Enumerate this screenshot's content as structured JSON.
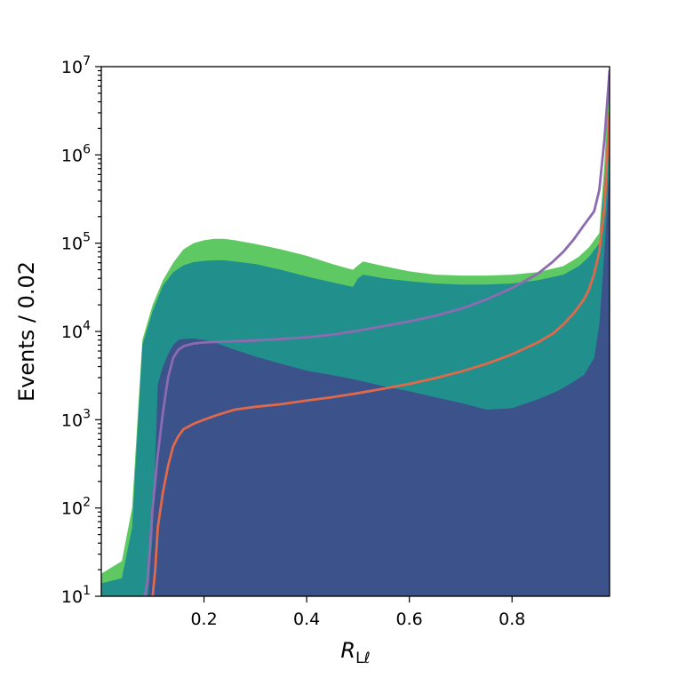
{
  "chart_data": {
    "type": "area",
    "xlabel_base": "R",
    "xlabel_sub": "Lℓ",
    "ylabel": "Events / 0.02",
    "xlim": [
      0.0,
      0.99
    ],
    "ylim": [
      10,
      10000000
    ],
    "yscale": "log",
    "grid": false,
    "x_ticks": [
      {
        "value": 0.2,
        "label": "0.2"
      },
      {
        "value": 0.4,
        "label": "0.4"
      },
      {
        "value": 0.6,
        "label": "0.6"
      },
      {
        "value": 0.8,
        "label": "0.8"
      }
    ],
    "y_ticks": [
      {
        "value": 10,
        "base": "10",
        "exp": "1"
      },
      {
        "value": 100,
        "base": "10",
        "exp": "2"
      },
      {
        "value": 1000,
        "base": "10",
        "exp": "3"
      },
      {
        "value": 10000,
        "base": "10",
        "exp": "4"
      },
      {
        "value": 100000,
        "base": "10",
        "exp": "5"
      },
      {
        "value": 1000000,
        "base": "10",
        "exp": "6"
      },
      {
        "value": 10000000,
        "base": "10",
        "exp": "7"
      }
    ],
    "stacked_areas": [
      {
        "color": "#5ec962",
        "x": [
          0.0,
          0.04,
          0.06,
          0.08,
          0.1,
          0.12,
          0.14,
          0.16,
          0.18,
          0.2,
          0.22,
          0.24,
          0.26,
          0.3,
          0.35,
          0.4,
          0.45,
          0.49,
          0.5,
          0.51,
          0.55,
          0.6,
          0.65,
          0.7,
          0.75,
          0.8,
          0.85,
          0.9,
          0.93,
          0.95,
          0.97,
          0.98,
          0.99
        ],
        "y": [
          18,
          25,
          100,
          8000,
          20000,
          38000,
          60000,
          85000,
          100000,
          108000,
          112000,
          112000,
          108000,
          98000,
          85000,
          72000,
          58000,
          50000,
          56000,
          62000,
          55000,
          48000,
          44000,
          43000,
          43000,
          44000,
          47000,
          55000,
          70000,
          90000,
          130000,
          800000,
          10000000
        ]
      },
      {
        "color": "#21908d",
        "x": [
          0.0,
          0.04,
          0.06,
          0.08,
          0.1,
          0.12,
          0.14,
          0.16,
          0.18,
          0.2,
          0.22,
          0.24,
          0.26,
          0.3,
          0.35,
          0.4,
          0.45,
          0.49,
          0.5,
          0.51,
          0.55,
          0.6,
          0.65,
          0.7,
          0.75,
          0.8,
          0.85,
          0.9,
          0.93,
          0.95,
          0.97,
          0.98,
          0.99
        ],
        "y": [
          14,
          16,
          60,
          7000,
          17000,
          33000,
          47000,
          56000,
          61000,
          63000,
          64000,
          64000,
          62000,
          58000,
          50000,
          42000,
          36000,
          32000,
          40000,
          44000,
          40000,
          37000,
          35000,
          34000,
          34000,
          35000,
          38000,
          44000,
          55000,
          70000,
          100000,
          500000,
          3000000
        ]
      },
      {
        "color": "#3b528b",
        "x": [
          0.0,
          0.08,
          0.09,
          0.1,
          0.11,
          0.12,
          0.13,
          0.14,
          0.15,
          0.16,
          0.18,
          0.2,
          0.22,
          0.25,
          0.3,
          0.35,
          0.4,
          0.45,
          0.5,
          0.55,
          0.6,
          0.65,
          0.7,
          0.73,
          0.75,
          0.77,
          0.8,
          0.85,
          0.88,
          0.9,
          0.92,
          0.94,
          0.96,
          0.97,
          0.98,
          0.99
        ],
        "y": [
          8,
          8,
          8,
          50,
          2500,
          4000,
          5500,
          7000,
          8000,
          8200,
          8300,
          8000,
          7500,
          6500,
          5200,
          4300,
          3600,
          3200,
          2800,
          2400,
          2100,
          1800,
          1550,
          1400,
          1300,
          1320,
          1350,
          1700,
          2000,
          2300,
          2700,
          3200,
          5000,
          12000,
          80000,
          800000
        ]
      }
    ],
    "lines": [
      {
        "color": "#8c6bb1",
        "x": [
          0.085,
          0.09,
          0.1,
          0.11,
          0.12,
          0.13,
          0.14,
          0.15,
          0.16,
          0.18,
          0.2,
          0.22,
          0.25,
          0.3,
          0.35,
          0.4,
          0.45,
          0.5,
          0.55,
          0.6,
          0.65,
          0.7,
          0.75,
          0.8,
          0.85,
          0.88,
          0.9,
          0.92,
          0.94,
          0.96,
          0.97,
          0.98,
          0.99
        ],
        "y": [
          10,
          15,
          100,
          400,
          1200,
          3000,
          5000,
          6200,
          6800,
          7300,
          7500,
          7600,
          7700,
          7900,
          8200,
          8600,
          9200,
          10200,
          11500,
          13000,
          15000,
          18000,
          23000,
          31000,
          45000,
          62000,
          80000,
          110000,
          160000,
          230000,
          400000,
          1500000,
          9000000
        ]
      },
      {
        "color": "#e0694a",
        "x": [
          0.1,
          0.105,
          0.11,
          0.12,
          0.13,
          0.14,
          0.15,
          0.16,
          0.18,
          0.2,
          0.22,
          0.24,
          0.26,
          0.28,
          0.3,
          0.35,
          0.4,
          0.45,
          0.5,
          0.55,
          0.6,
          0.65,
          0.7,
          0.75,
          0.8,
          0.85,
          0.88,
          0.9,
          0.92,
          0.94,
          0.95,
          0.96,
          0.97,
          0.98,
          0.99
        ],
        "y": [
          10,
          20,
          60,
          150,
          300,
          500,
          650,
          780,
          900,
          1000,
          1100,
          1200,
          1300,
          1350,
          1400,
          1500,
          1650,
          1800,
          2000,
          2250,
          2550,
          2950,
          3500,
          4300,
          5500,
          7500,
          9500,
          12000,
          16000,
          23000,
          30000,
          45000,
          80000,
          250000,
          3000000
        ]
      }
    ]
  }
}
